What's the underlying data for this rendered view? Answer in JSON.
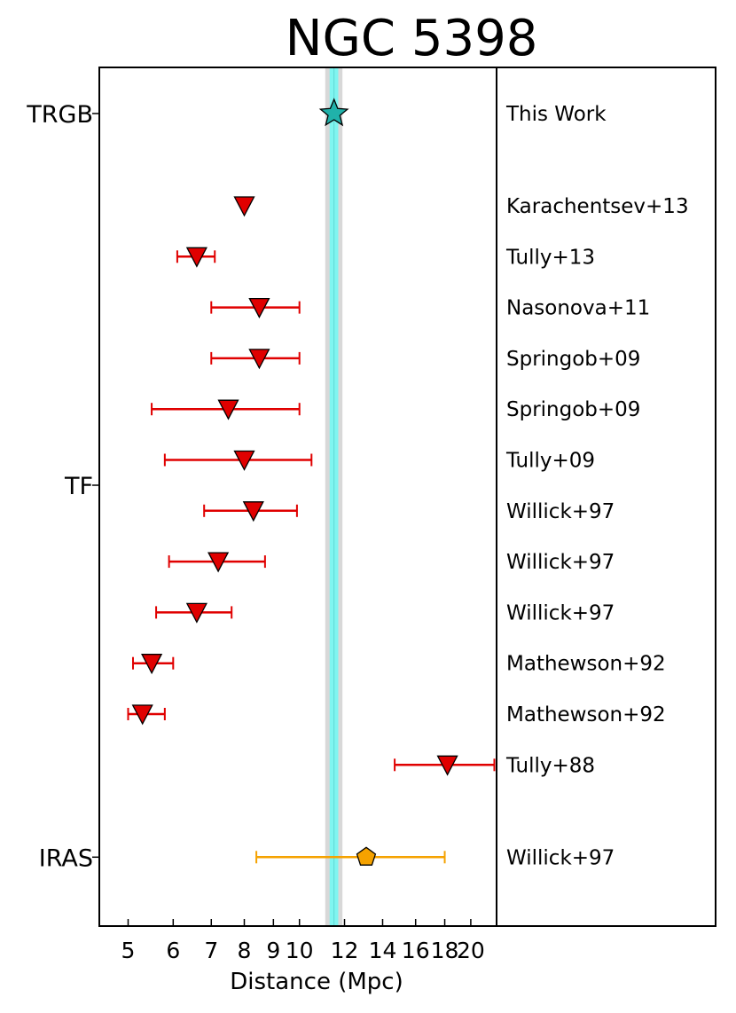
{
  "chart_data": {
    "type": "scatter",
    "title": "NGC 5398",
    "xlabel": "Distance (Mpc)",
    "x_scale": "log",
    "xlim": [
      4.45,
      22.2
    ],
    "xticks": [
      5,
      6,
      7,
      8,
      9,
      10,
      12,
      14,
      16,
      18,
      20
    ],
    "grid": false,
    "trgb_band": {
      "value": 11.5,
      "inner": [
        11.3,
        11.7
      ],
      "outer": [
        11.1,
        11.9
      ],
      "colors": {
        "inner": "#7ff5f0",
        "outer": "#d8d8d8"
      }
    },
    "categories": [
      "TRGB",
      "TF",
      "IRAS"
    ],
    "points": [
      {
        "ref": "This Work",
        "group": "TRGB",
        "value": 11.5,
        "err_low": null,
        "err_high": null,
        "marker": "star",
        "color": "#20b2aa"
      },
      {
        "ref": "Karachentsev+13",
        "group": "TF",
        "value": 8.0,
        "err_low": null,
        "err_high": null,
        "marker": "triangle",
        "color": "#e00000"
      },
      {
        "ref": "Tully+13",
        "group": "TF",
        "value": 6.6,
        "err_low": 6.1,
        "err_high": 7.1,
        "marker": "triangle",
        "color": "#e00000"
      },
      {
        "ref": "Nasonova+11",
        "group": "TF",
        "value": 8.5,
        "err_low": 7.0,
        "err_high": 10.0,
        "marker": "triangle",
        "color": "#e00000"
      },
      {
        "ref": "Springob+09",
        "group": "TF",
        "value": 8.5,
        "err_low": 7.0,
        "err_high": 10.0,
        "marker": "triangle",
        "color": "#e00000"
      },
      {
        "ref": "Springob+09",
        "group": "TF",
        "value": 7.5,
        "err_low": 5.5,
        "err_high": 10.0,
        "marker": "triangle",
        "color": "#e00000"
      },
      {
        "ref": "Tully+09",
        "group": "TF",
        "value": 8.0,
        "err_low": 5.8,
        "err_high": 10.5,
        "marker": "triangle",
        "color": "#e00000"
      },
      {
        "ref": "Willick+97",
        "group": "TF",
        "value": 8.3,
        "err_low": 6.8,
        "err_high": 9.9,
        "marker": "triangle",
        "color": "#e00000"
      },
      {
        "ref": "Willick+97",
        "group": "TF",
        "value": 7.2,
        "err_low": 5.9,
        "err_high": 8.7,
        "marker": "triangle",
        "color": "#e00000"
      },
      {
        "ref": "Willick+97",
        "group": "TF",
        "value": 6.6,
        "err_low": 5.6,
        "err_high": 7.6,
        "marker": "triangle",
        "color": "#e00000"
      },
      {
        "ref": "Mathewson+92",
        "group": "TF",
        "value": 5.5,
        "err_low": 5.1,
        "err_high": 6.0,
        "marker": "triangle",
        "color": "#e00000"
      },
      {
        "ref": "Mathewson+92",
        "group": "TF",
        "value": 5.3,
        "err_low": 5.0,
        "err_high": 5.8,
        "marker": "triangle",
        "color": "#e00000"
      },
      {
        "ref": "Tully+88",
        "group": "TF",
        "value": 18.2,
        "err_low": 14.7,
        "err_high": 22.0,
        "marker": "triangle",
        "color": "#e00000"
      },
      {
        "ref": "Willick+97",
        "group": "IRAS",
        "value": 13.1,
        "err_low": 8.4,
        "err_high": 18.0,
        "marker": "pentagon",
        "color": "#f5a200"
      }
    ]
  }
}
